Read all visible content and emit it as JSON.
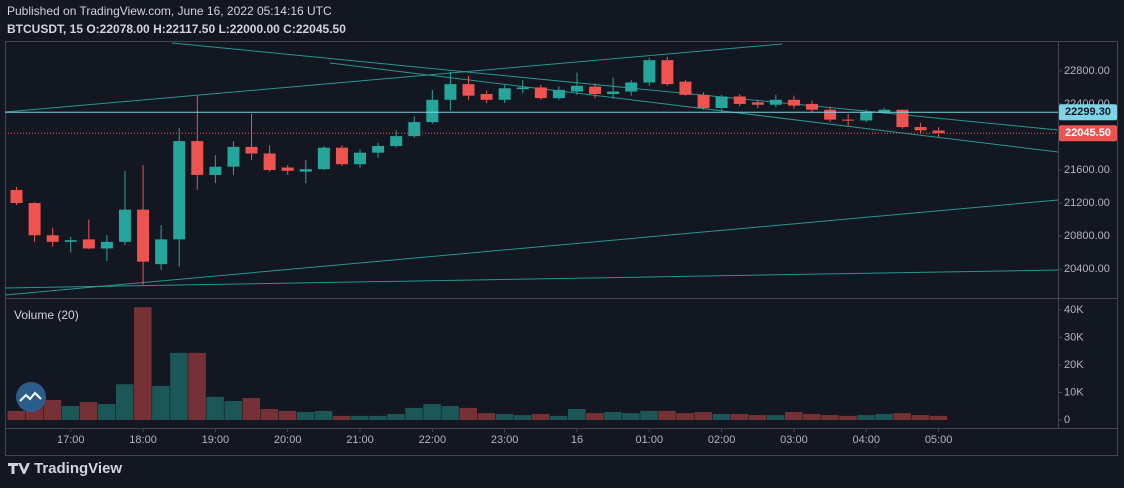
{
  "header": "Published on TradingView.com, June 16, 2022 05:14:16 UTC",
  "legend": "BTCUSDT, 15 O:22078.00 H:22117.50 L:22000.00 C:22045.50",
  "brand": "TradingView",
  "chart_data": [
    {
      "type": "candlestick",
      "categories": [
        null,
        null,
        null,
        "17:00",
        null,
        null,
        null,
        "18:00",
        null,
        null,
        null,
        "19:00",
        null,
        null,
        null,
        "20:00",
        null,
        null,
        null,
        "21:00",
        null,
        null,
        null,
        "22:00",
        null,
        null,
        null,
        "23:00",
        null,
        null,
        null,
        "16",
        null,
        null,
        null,
        "01:00",
        null,
        null,
        null,
        "02:00",
        null,
        null,
        null,
        "03:00",
        null,
        null,
        null,
        "04:00",
        null,
        null,
        null,
        "05:00"
      ],
      "open": [
        21358,
        21200,
        20810,
        20730,
        20760,
        20650,
        20730,
        21120,
        20460,
        20760,
        21950,
        21540,
        21640,
        21880,
        21800,
        21630,
        21580,
        21610,
        21870,
        21670,
        21810,
        21890,
        22010,
        22180,
        22450,
        22640,
        22520,
        22450,
        22580,
        22600,
        22470,
        22550,
        22610,
        22520,
        22550,
        22660,
        22930,
        22670,
        22510,
        22350,
        22490,
        22420,
        22390,
        22450,
        22400,
        22330,
        22210,
        22200,
        22300,
        22330,
        22120,
        22078
      ],
      "high": [
        21394,
        21210,
        20900,
        20790,
        21000,
        20810,
        21590,
        21660,
        20930,
        22110,
        22500,
        21780,
        21950,
        22280,
        21900,
        21660,
        21720,
        21890,
        21900,
        21850,
        21930,
        22080,
        22250,
        22570,
        22790,
        22740,
        22560,
        22630,
        22690,
        22630,
        22610,
        22780,
        22650,
        22720,
        22690,
        22960,
        22970,
        22690,
        22540,
        22510,
        22520,
        22450,
        22510,
        22500,
        22440,
        22370,
        22280,
        22330,
        22350,
        22330,
        22170,
        22117.5
      ],
      "low": [
        21176,
        20730,
        20670,
        20600,
        20640,
        20500,
        20690,
        20210,
        20390,
        20430,
        21360,
        21440,
        21540,
        21720,
        21580,
        21540,
        21440,
        21600,
        21650,
        21630,
        21750,
        21870,
        21990,
        22160,
        22320,
        22450,
        22410,
        22410,
        22530,
        22450,
        22450,
        22510,
        22470,
        22460,
        22500,
        22620,
        22620,
        22500,
        22330,
        22320,
        22370,
        22350,
        22360,
        22340,
        22300,
        22180,
        22130,
        22180,
        22280,
        22100,
        22040,
        22000
      ],
      "close": [
        21200,
        20810,
        20730,
        20750,
        20650,
        20730,
        21120,
        20490,
        20760,
        21950,
        21540,
        21640,
        21880,
        21800,
        21600,
        21590,
        21610,
        21870,
        21670,
        21810,
        21890,
        22010,
        22180,
        22450,
        22640,
        22500,
        22450,
        22590,
        22600,
        22470,
        22570,
        22620,
        22520,
        22550,
        22660,
        22930,
        22640,
        22510,
        22350,
        22490,
        22400,
        22390,
        22450,
        22380,
        22330,
        22210,
        22200,
        22300,
        22330,
        22120,
        22080,
        22045.5
      ],
      "up_color": "#26a69a",
      "down_color": "#ef5350",
      "ylim": [
        20050,
        23150
      ],
      "yticks": [
        {
          "value": 20400,
          "label": "20400.00"
        },
        {
          "value": 20800,
          "label": "20800.00"
        },
        {
          "value": 21200,
          "label": "21200.00"
        },
        {
          "value": 21600,
          "label": "21600.00"
        },
        {
          "value": 22000,
          "label": "22000.00"
        },
        {
          "value": 22400,
          "label": "22400.00"
        },
        {
          "value": 22800,
          "label": "22800.00"
        }
      ],
      "hline": {
        "value": 22299.3,
        "label": "22299.30",
        "color": "#7fd3e6"
      },
      "last_price": {
        "value": 22045.5,
        "label": "22045.50",
        "color": "#ef5350"
      }
    },
    {
      "type": "bar",
      "title": "Volume (20)",
      "values": [
        3300,
        5500,
        7300,
        5100,
        6500,
        5800,
        13000,
        41000,
        12400,
        24400,
        24400,
        8400,
        6900,
        8000,
        4000,
        3300,
        2900,
        3300,
        1500,
        1500,
        1500,
        2200,
        4400,
        5800,
        5100,
        4400,
        2500,
        2200,
        1800,
        2200,
        1500,
        4000,
        2500,
        2900,
        2500,
        3300,
        3300,
        2500,
        2900,
        2200,
        2200,
        1800,
        1800,
        2900,
        2200,
        1800,
        1500,
        1800,
        2200,
        2500,
        1800,
        1500
      ],
      "ylim": [
        -2900,
        43600
      ],
      "yticks": [
        0,
        {
          "value": 10000,
          "label": "10K"
        },
        {
          "value": 20000,
          "label": "20K"
        },
        {
          "value": 30000,
          "label": "30K"
        },
        {
          "value": 40000,
          "label": "40K"
        }
      ]
    }
  ]
}
